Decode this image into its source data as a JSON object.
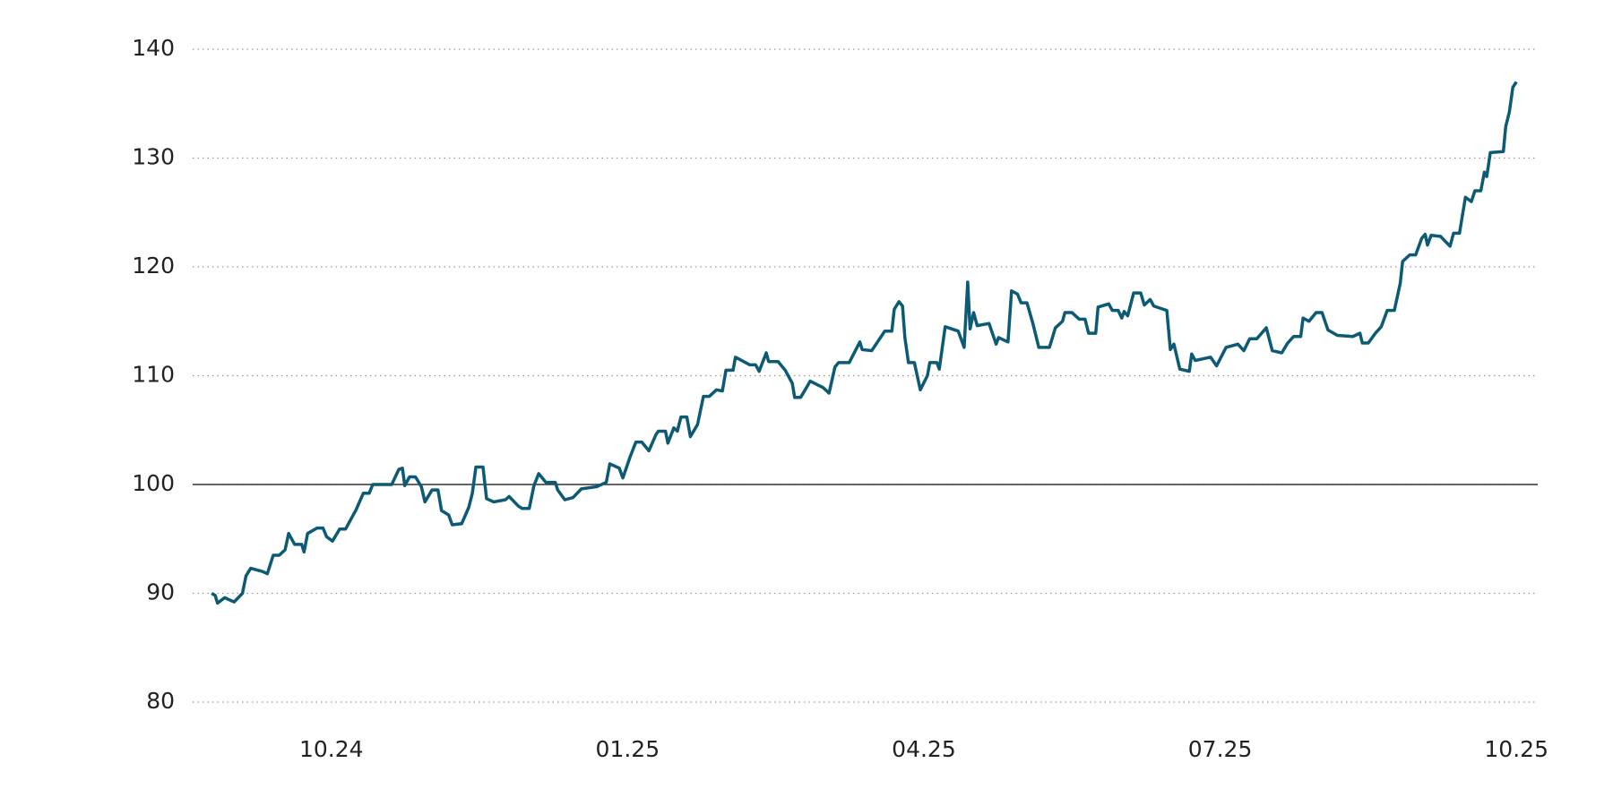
{
  "chart_data": {
    "type": "line",
    "x": [
      2024.649,
      2024.652,
      2024.654,
      2024.66,
      2024.668,
      2024.675,
      2024.678,
      2024.682,
      2024.692,
      2024.696,
      2024.701,
      2024.706,
      2024.711,
      2024.714,
      2024.719,
      2024.725,
      2024.727,
      2024.73,
      2024.738,
      2024.743,
      2024.746,
      2024.751,
      2024.757,
      2024.762,
      2024.766,
      2024.771,
      2024.777,
      2024.782,
      2024.785,
      2024.801,
      2024.807,
      2024.81,
      2024.812,
      2024.816,
      2024.821,
      2024.826,
      2024.829,
      2024.835,
      2024.84,
      2024.843,
      2024.849,
      2024.852,
      2024.86,
      2024.866,
      2024.869,
      2024.872,
      2024.878,
      2024.881,
      2024.887,
      2024.897,
      2024.9,
      2024.908,
      2024.911,
      2024.917,
      2024.921,
      2024.925,
      2024.931,
      2024.939,
      2024.941,
      2024.947,
      2024.954,
      2024.961,
      2024.974,
      2024.982,
      2024.985,
      2024.993,
      2024.996,
      2025.002,
      2025.007,
      2025.012,
      2025.018,
      2025.024,
      2025.026,
      2025.032,
      2025.034,
      2025.039,
      2025.042,
      2025.045,
      2025.05,
      2025.053,
      2025.059,
      2025.064,
      2025.069,
      2025.075,
      2025.08,
      2025.083,
      2025.089,
      2025.091,
      2025.103,
      2025.108,
      2025.111,
      2025.117,
      2025.119,
      2025.127,
      2025.133,
      2025.139,
      2025.141,
      2025.146,
      2025.152,
      2025.154,
      2025.165,
      2025.17,
      2025.175,
      2025.178,
      2025.187,
      2025.196,
      2025.198,
      2025.206,
      2025.214,
      2025.217,
      2025.223,
      2025.225,
      2025.229,
      2025.232,
      2025.234,
      2025.237,
      2025.242,
      2025.247,
      2025.253,
      2025.255,
      2025.261,
      2025.263,
      2025.268,
      2025.279,
      2025.284,
      2025.287,
      2025.289,
      2025.292,
      2025.295,
      2025.305,
      2025.311,
      2025.313,
      2025.321,
      2025.324,
      2025.329,
      2025.332,
      2025.337,
      2025.342,
      2025.347,
      2025.356,
      2025.361,
      2025.367,
      2025.369,
      2025.375,
      2025.381,
      2025.386,
      2025.389,
      2025.395,
      2025.397,
      2025.406,
      2025.409,
      2025.414,
      2025.417,
      2025.419,
      2025.422,
      2025.427,
      2025.433,
      2025.436,
      2025.441,
      2025.444,
      2025.455,
      2025.458,
      2025.461,
      2025.466,
      2025.474,
      2025.476,
      2025.479,
      2025.492,
      2025.497,
      2025.505,
      2025.515,
      2025.52,
      2025.525,
      2025.531,
      2025.539,
      2025.544,
      2025.552,
      2025.557,
      2025.562,
      2025.568,
      2025.57,
      2025.575,
      2025.581,
      2025.586,
      2025.591,
      2025.599,
      2025.612,
      2025.618,
      2025.62,
      2025.625,
      2025.631,
      2025.636,
      2025.641,
      2025.647,
      2025.652,
      2025.654,
      2025.66,
      2025.665,
      2025.67,
      2025.673,
      2025.675,
      2025.678,
      2025.686,
      2025.694,
      2025.697,
      2025.702,
      2025.707,
      2025.712,
      2025.715,
      2025.72,
      2025.723,
      2025.725,
      2025.728,
      2025.739,
      2025.741,
      2025.744,
      2025.747,
      2025.75
    ],
    "values": [
      90,
      89.8,
      89.1,
      89.6,
      89.2,
      90,
      91.6,
      92.3,
      92.0,
      91.8,
      93.5,
      93.5,
      94,
      95.5,
      94.5,
      94.5,
      93.8,
      95.5,
      96,
      96,
      95.2,
      94.8,
      95.9,
      95.9,
      96.7,
      97.7,
      99.2,
      99.2,
      100,
      100,
      101.4,
      101.5,
      99.9,
      100.7,
      100.7,
      99.8,
      98.4,
      99.5,
      99.5,
      97.6,
      97.2,
      96.3,
      96.4,
      97.9,
      99.2,
      101.6,
      101.6,
      98.7,
      98.4,
      98.6,
      98.9,
      98.0,
      97.8,
      97.8,
      99.9,
      101.0,
      100.2,
      100.2,
      99.5,
      98.6,
      98.8,
      99.6,
      99.8,
      100.2,
      101.9,
      101.5,
      100.6,
      102.5,
      103.9,
      103.9,
      103.1,
      104.6,
      104.9,
      104.9,
      103.8,
      105.2,
      104.9,
      106.2,
      106.2,
      104.4,
      105.5,
      108.1,
      108.1,
      108.7,
      108.6,
      110.5,
      110.5,
      111.7,
      111.0,
      111.0,
      110.4,
      112.1,
      111.3,
      111.3,
      110.5,
      109.3,
      108.0,
      108.0,
      109.1,
      109.5,
      108.9,
      108.4,
      110.8,
      111.2,
      111.2,
      113.1,
      112.4,
      112.3,
      113.6,
      114.1,
      114.1,
      116.1,
      116.8,
      116.4,
      113.5,
      111.2,
      111.2,
      108.7,
      110.0,
      111.2,
      111.2,
      110.6,
      114.5,
      114.1,
      112.6,
      118.6,
      114.3,
      115.8,
      114.6,
      114.8,
      112.9,
      113.5,
      113.1,
      117.8,
      117.5,
      116.7,
      116.7,
      114.8,
      112.6,
      112.6,
      114.4,
      115.0,
      115.8,
      115.8,
      115.2,
      115.2,
      113.9,
      113.9,
      116.3,
      116.6,
      116.0,
      116.0,
      115.3,
      115.9,
      115.5,
      117.6,
      117.6,
      116.5,
      117.0,
      116.4,
      116.0,
      112.4,
      112.9,
      110.6,
      110.4,
      112.0,
      111.4,
      111.7,
      110.9,
      112.6,
      112.9,
      112.3,
      113.4,
      113.4,
      114.4,
      112.3,
      112.1,
      113.0,
      113.6,
      113.6,
      115.3,
      115.0,
      115.8,
      115.8,
      114.2,
      113.7,
      113.6,
      113.9,
      113.0,
      113.0,
      113.9,
      114.5,
      116.0,
      116.0,
      118.5,
      120.5,
      121.1,
      121.1,
      122.6,
      123.0,
      122.0,
      122.9,
      122.8,
      121.9,
      123.1,
      123.1,
      126.4,
      126.0,
      127.0,
      127.0,
      128.7,
      128.3,
      130.5,
      130.6,
      132.9,
      134.2,
      136.5,
      137.0
    ],
    "color": "#0c5a73",
    "xlim": [
      2024.633,
      2025.768
    ],
    "xticks": [
      {
        "value": 2024.75,
        "label": "10.24"
      },
      {
        "value": 2025.0,
        "label": "01.25"
      },
      {
        "value": 2025.25,
        "label": "04.25"
      },
      {
        "value": 2025.5,
        "label": "07.25"
      },
      {
        "value": 2025.75,
        "label": "10.25"
      }
    ],
    "ylim": [
      80,
      140
    ],
    "yticks": [
      80,
      90,
      100,
      110,
      120,
      130,
      140
    ],
    "baseline": 100,
    "grid": true
  }
}
